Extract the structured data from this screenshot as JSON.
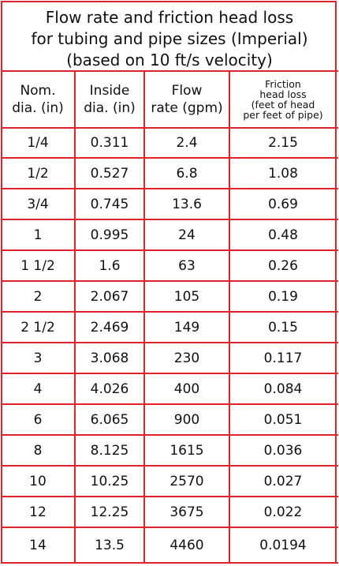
{
  "title": {
    "line1": "Flow rate and friction head loss",
    "line2": "for tubing and pipe sizes (Imperial)",
    "line3": "(based on 10 ft/s velocity)"
  },
  "headers": {
    "nom": [
      "Nom.",
      "dia. (in)"
    ],
    "inside": [
      "Inside",
      "dia. (in)"
    ],
    "flow": [
      "Flow",
      "rate (gpm)"
    ],
    "friction": [
      "Friction",
      "head loss",
      "(feet of head",
      "per feet of pipe)"
    ]
  },
  "rows": [
    [
      "1/4",
      "0.311",
      "2.4",
      "2.15"
    ],
    [
      "1/2",
      "0.527",
      "6.8",
      "1.08"
    ],
    [
      "3/4",
      "0.745",
      "13.6",
      "0.69"
    ],
    [
      "1",
      "0.995",
      "24",
      "0.48"
    ],
    [
      "1 1/2",
      "1.6",
      "63",
      "0.26"
    ],
    [
      "2",
      "2.067",
      "105",
      "0.19"
    ],
    [
      "2 1/2",
      "2.469",
      "149",
      "0.15"
    ],
    [
      "3",
      "3.068",
      "230",
      "0.117"
    ],
    [
      "4",
      "4.026",
      "400",
      "0.084"
    ],
    [
      "6",
      "6.065",
      "900",
      "0.051"
    ],
    [
      "8",
      "8.125",
      "1615",
      "0.036"
    ],
    [
      "10",
      "10.25",
      "2570",
      "0.027"
    ],
    [
      "12",
      "12.25",
      "3675",
      "0.022"
    ],
    [
      "14",
      "13.5",
      "4460",
      "0.0194"
    ]
  ],
  "colors": {
    "rule": "#e0232a",
    "text": "#111111",
    "background": "#ffffff"
  }
}
